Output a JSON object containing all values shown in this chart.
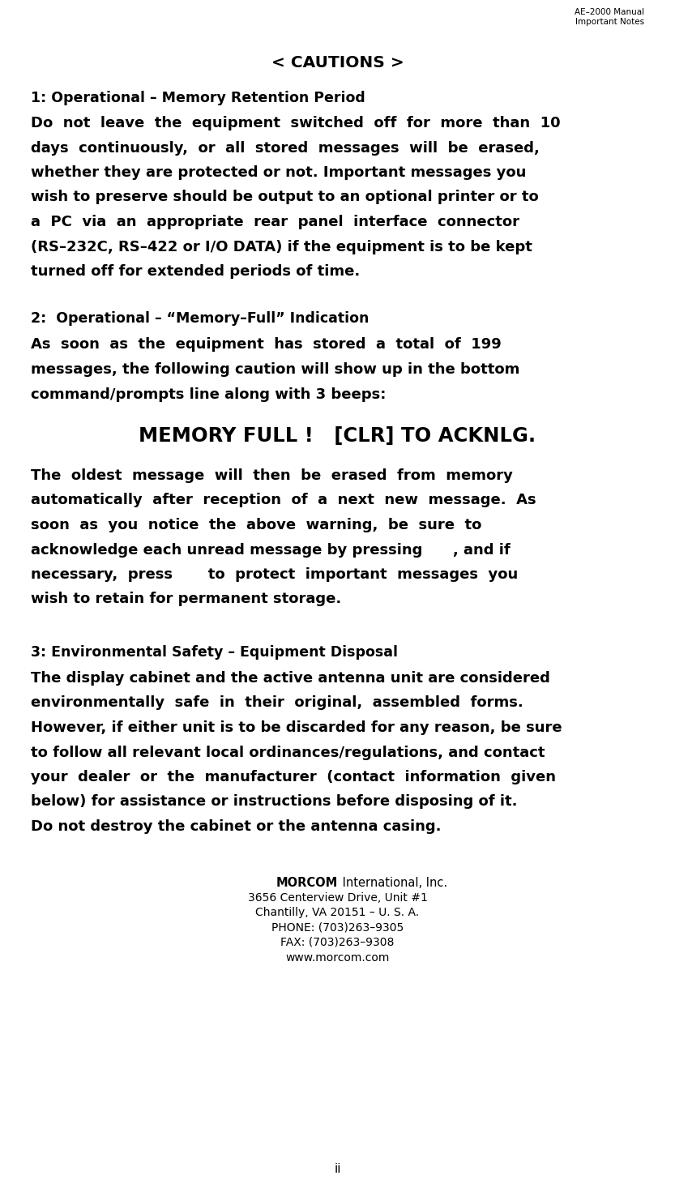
{
  "bg_color": "#ffffff",
  "header_line1": "AE–2000 Manual",
  "header_line2": "Important Notes",
  "footer_text": "ii",
  "cautions_title": "< CAUTIONS >",
  "section1_title": "1: Operational – Memory Retention Period",
  "section1_lines": [
    "Do  not  leave  the  equipment  switched  off  for  more  than  10",
    "days  continuously,  or  all  stored  messages  will  be  erased,",
    "whether they are protected or not. Important messages you",
    "wish to preserve should be output to an optional printer or to",
    "a  PC  via  an  appropriate  rear  panel  interface  connector",
    "(RS–232C, RS–422 or I/O DATA) if the equipment is to be kept",
    "turned off for extended periods of time."
  ],
  "section2_title": "2:  Operational – “Memory–Full” Indication",
  "section2_lines": [
    "As  soon  as  the  equipment  has  stored  a  total  of  199",
    "messages, the following caution will show up in the bottom",
    "command/prompts line along with 3 beeps:"
  ],
  "memory_full_text": "MEMORY FULL !   [CLR] TO ACKNLG.",
  "section2b_lines": [
    "The  oldest  message  will  then  be  erased  from  memory",
    "automatically  after  reception  of  a  next  new  message.  As",
    "soon  as  you  notice  the  above  warning,  be  sure  to",
    "acknowledge each unread message by pressing      , and if",
    "necessary,  press       to  protect  important  messages  you",
    "wish to retain for permanent storage."
  ],
  "section3_title": "3: Environmental Safety – Equipment Disposal",
  "section3_lines": [
    "The display cabinet and the active antenna unit are considered",
    "environmentally  safe  in  their  original,  assembled  forms.",
    "However, if either unit is to be discarded for any reason, be sure",
    "to follow all relevant local ordinances/regulations, and contact",
    "your  dealer  or  the  manufacturer  (contact  information  given",
    "below) for assistance or instructions before disposing of it.",
    "Do not destroy the cabinet or the antenna casing."
  ],
  "company_name_bold": "MORCOM",
  "company_name_rest": " International, Inc.",
  "company_lines": [
    "3656 Centerview Drive, Unit #1",
    "Chantilly, VA 20151 – U. S. A.",
    "PHONE: (703)263–9305",
    "FAX: (703)263–9308",
    "www.morcom.com"
  ]
}
